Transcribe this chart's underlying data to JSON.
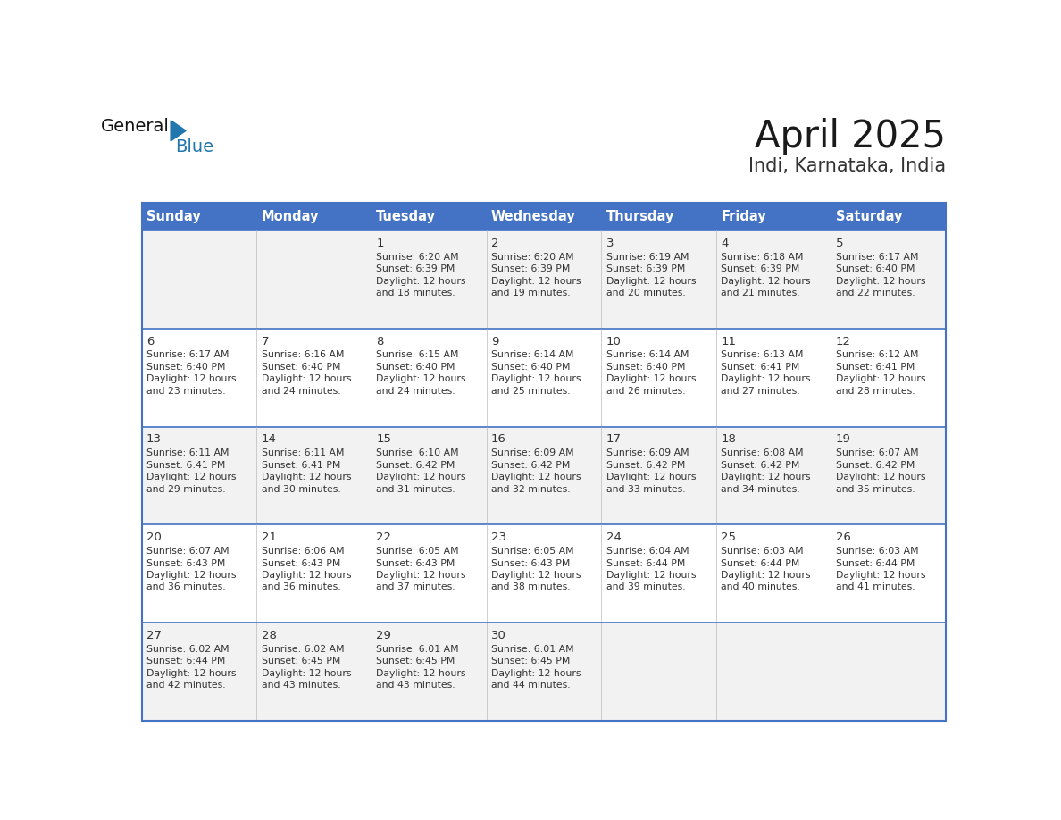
{
  "title": "April 2025",
  "subtitle": "Indi, Karnataka, India",
  "days_of_week": [
    "Sunday",
    "Monday",
    "Tuesday",
    "Wednesday",
    "Thursday",
    "Friday",
    "Saturday"
  ],
  "header_bg": "#4472C4",
  "header_text": "#FFFFFF",
  "border_color": "#4472C4",
  "row_bg_odd": "#F2F2F2",
  "row_bg_even": "#FFFFFF",
  "text_color": "#333333",
  "calendar_data": [
    [
      {
        "day": "",
        "sunrise": "",
        "sunset": "",
        "daylight_line1": "",
        "daylight_line2": ""
      },
      {
        "day": "",
        "sunrise": "",
        "sunset": "",
        "daylight_line1": "",
        "daylight_line2": ""
      },
      {
        "day": "1",
        "sunrise": "6:20 AM",
        "sunset": "6:39 PM",
        "daylight_line1": "Daylight: 12 hours",
        "daylight_line2": "and 18 minutes."
      },
      {
        "day": "2",
        "sunrise": "6:20 AM",
        "sunset": "6:39 PM",
        "daylight_line1": "Daylight: 12 hours",
        "daylight_line2": "and 19 minutes."
      },
      {
        "day": "3",
        "sunrise": "6:19 AM",
        "sunset": "6:39 PM",
        "daylight_line1": "Daylight: 12 hours",
        "daylight_line2": "and 20 minutes."
      },
      {
        "day": "4",
        "sunrise": "6:18 AM",
        "sunset": "6:39 PM",
        "daylight_line1": "Daylight: 12 hours",
        "daylight_line2": "and 21 minutes."
      },
      {
        "day": "5",
        "sunrise": "6:17 AM",
        "sunset": "6:40 PM",
        "daylight_line1": "Daylight: 12 hours",
        "daylight_line2": "and 22 minutes."
      }
    ],
    [
      {
        "day": "6",
        "sunrise": "6:17 AM",
        "sunset": "6:40 PM",
        "daylight_line1": "Daylight: 12 hours",
        "daylight_line2": "and 23 minutes."
      },
      {
        "day": "7",
        "sunrise": "6:16 AM",
        "sunset": "6:40 PM",
        "daylight_line1": "Daylight: 12 hours",
        "daylight_line2": "and 24 minutes."
      },
      {
        "day": "8",
        "sunrise": "6:15 AM",
        "sunset": "6:40 PM",
        "daylight_line1": "Daylight: 12 hours",
        "daylight_line2": "and 24 minutes."
      },
      {
        "day": "9",
        "sunrise": "6:14 AM",
        "sunset": "6:40 PM",
        "daylight_line1": "Daylight: 12 hours",
        "daylight_line2": "and 25 minutes."
      },
      {
        "day": "10",
        "sunrise": "6:14 AM",
        "sunset": "6:40 PM",
        "daylight_line1": "Daylight: 12 hours",
        "daylight_line2": "and 26 minutes."
      },
      {
        "day": "11",
        "sunrise": "6:13 AM",
        "sunset": "6:41 PM",
        "daylight_line1": "Daylight: 12 hours",
        "daylight_line2": "and 27 minutes."
      },
      {
        "day": "12",
        "sunrise": "6:12 AM",
        "sunset": "6:41 PM",
        "daylight_line1": "Daylight: 12 hours",
        "daylight_line2": "and 28 minutes."
      }
    ],
    [
      {
        "day": "13",
        "sunrise": "6:11 AM",
        "sunset": "6:41 PM",
        "daylight_line1": "Daylight: 12 hours",
        "daylight_line2": "and 29 minutes."
      },
      {
        "day": "14",
        "sunrise": "6:11 AM",
        "sunset": "6:41 PM",
        "daylight_line1": "Daylight: 12 hours",
        "daylight_line2": "and 30 minutes."
      },
      {
        "day": "15",
        "sunrise": "6:10 AM",
        "sunset": "6:42 PM",
        "daylight_line1": "Daylight: 12 hours",
        "daylight_line2": "and 31 minutes."
      },
      {
        "day": "16",
        "sunrise": "6:09 AM",
        "sunset": "6:42 PM",
        "daylight_line1": "Daylight: 12 hours",
        "daylight_line2": "and 32 minutes."
      },
      {
        "day": "17",
        "sunrise": "6:09 AM",
        "sunset": "6:42 PM",
        "daylight_line1": "Daylight: 12 hours",
        "daylight_line2": "and 33 minutes."
      },
      {
        "day": "18",
        "sunrise": "6:08 AM",
        "sunset": "6:42 PM",
        "daylight_line1": "Daylight: 12 hours",
        "daylight_line2": "and 34 minutes."
      },
      {
        "day": "19",
        "sunrise": "6:07 AM",
        "sunset": "6:42 PM",
        "daylight_line1": "Daylight: 12 hours",
        "daylight_line2": "and 35 minutes."
      }
    ],
    [
      {
        "day": "20",
        "sunrise": "6:07 AM",
        "sunset": "6:43 PM",
        "daylight_line1": "Daylight: 12 hours",
        "daylight_line2": "and 36 minutes."
      },
      {
        "day": "21",
        "sunrise": "6:06 AM",
        "sunset": "6:43 PM",
        "daylight_line1": "Daylight: 12 hours",
        "daylight_line2": "and 36 minutes."
      },
      {
        "day": "22",
        "sunrise": "6:05 AM",
        "sunset": "6:43 PM",
        "daylight_line1": "Daylight: 12 hours",
        "daylight_line2": "and 37 minutes."
      },
      {
        "day": "23",
        "sunrise": "6:05 AM",
        "sunset": "6:43 PM",
        "daylight_line1": "Daylight: 12 hours",
        "daylight_line2": "and 38 minutes."
      },
      {
        "day": "24",
        "sunrise": "6:04 AM",
        "sunset": "6:44 PM",
        "daylight_line1": "Daylight: 12 hours",
        "daylight_line2": "and 39 minutes."
      },
      {
        "day": "25",
        "sunrise": "6:03 AM",
        "sunset": "6:44 PM",
        "daylight_line1": "Daylight: 12 hours",
        "daylight_line2": "and 40 minutes."
      },
      {
        "day": "26",
        "sunrise": "6:03 AM",
        "sunset": "6:44 PM",
        "daylight_line1": "Daylight: 12 hours",
        "daylight_line2": "and 41 minutes."
      }
    ],
    [
      {
        "day": "27",
        "sunrise": "6:02 AM",
        "sunset": "6:44 PM",
        "daylight_line1": "Daylight: 12 hours",
        "daylight_line2": "and 42 minutes."
      },
      {
        "day": "28",
        "sunrise": "6:02 AM",
        "sunset": "6:45 PM",
        "daylight_line1": "Daylight: 12 hours",
        "daylight_line2": "and 43 minutes."
      },
      {
        "day": "29",
        "sunrise": "6:01 AM",
        "sunset": "6:45 PM",
        "daylight_line1": "Daylight: 12 hours",
        "daylight_line2": "and 43 minutes."
      },
      {
        "day": "30",
        "sunrise": "6:01 AM",
        "sunset": "6:45 PM",
        "daylight_line1": "Daylight: 12 hours",
        "daylight_line2": "and 44 minutes."
      },
      {
        "day": "",
        "sunrise": "",
        "sunset": "",
        "daylight_line1": "",
        "daylight_line2": ""
      },
      {
        "day": "",
        "sunrise": "",
        "sunset": "",
        "daylight_line1": "",
        "daylight_line2": ""
      },
      {
        "day": "",
        "sunrise": "",
        "sunset": "",
        "daylight_line1": "",
        "daylight_line2": ""
      }
    ]
  ]
}
